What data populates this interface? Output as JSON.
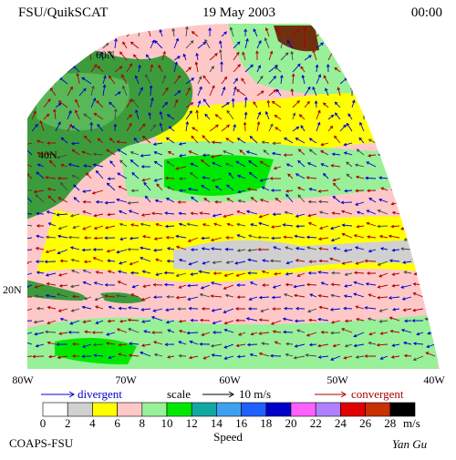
{
  "header": {
    "source": "FSU/QuikSCAT",
    "date": "19 May 2003",
    "time": "00:00"
  },
  "map": {
    "lat_labels": [
      "60N",
      "40N",
      "20N"
    ],
    "lon_labels": [
      "80W",
      "70W",
      "60W",
      "50W",
      "40W"
    ]
  },
  "legend": {
    "divergent": "divergent",
    "scale": "scale",
    "scale_value": "10 m/s",
    "convergent": "convergent"
  },
  "colorbar": {
    "title": "Speed",
    "unit": "m/s",
    "ticks": [
      0,
      2,
      4,
      6,
      8,
      10,
      12,
      14,
      16,
      18,
      20,
      22,
      24,
      26,
      28
    ],
    "colors": [
      "#ffffff",
      "#d0d0d0",
      "#ffff00",
      "#ffc8c8",
      "#98f098",
      "#00e800",
      "#10a8a0",
      "#40a0f0",
      "#2060ff",
      "#0000c8",
      "#ff60ff",
      "#b080ff",
      "#e00000",
      "#c83000",
      "#000000"
    ]
  },
  "footer": {
    "org": "COAPS-FSU",
    "author": "Yan Gu"
  }
}
